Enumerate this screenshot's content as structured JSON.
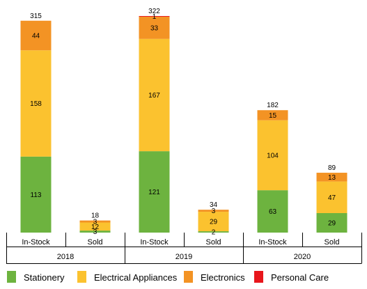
{
  "chart_data": {
    "type": "bar",
    "stacked": true,
    "groups": [
      "2018",
      "2019",
      "2020"
    ],
    "categories": [
      "In-Stock",
      "Sold"
    ],
    "series": [
      {
        "name": "Stationery",
        "color": "#6db33f",
        "values": [
          [
            113,
            3
          ],
          [
            121,
            2
          ],
          [
            63,
            29
          ]
        ]
      },
      {
        "name": "Electrical Appliances",
        "color": "#fbc22f",
        "values": [
          [
            158,
            12
          ],
          [
            167,
            29
          ],
          [
            104,
            47
          ]
        ]
      },
      {
        "name": "Electronics",
        "color": "#f39324",
        "values": [
          [
            44,
            3
          ],
          [
            33,
            3
          ],
          [
            15,
            13
          ]
        ]
      },
      {
        "name": "Personal Care",
        "color": "#e8161c",
        "values": [
          [
            0,
            0
          ],
          [
            1,
            0
          ],
          [
            0,
            0
          ]
        ]
      }
    ],
    "totals": [
      [
        315,
        18
      ],
      [
        322,
        34
      ],
      [
        182,
        89
      ]
    ],
    "ylim": [
      0,
      322
    ],
    "legend": "bottom",
    "grid": false
  }
}
